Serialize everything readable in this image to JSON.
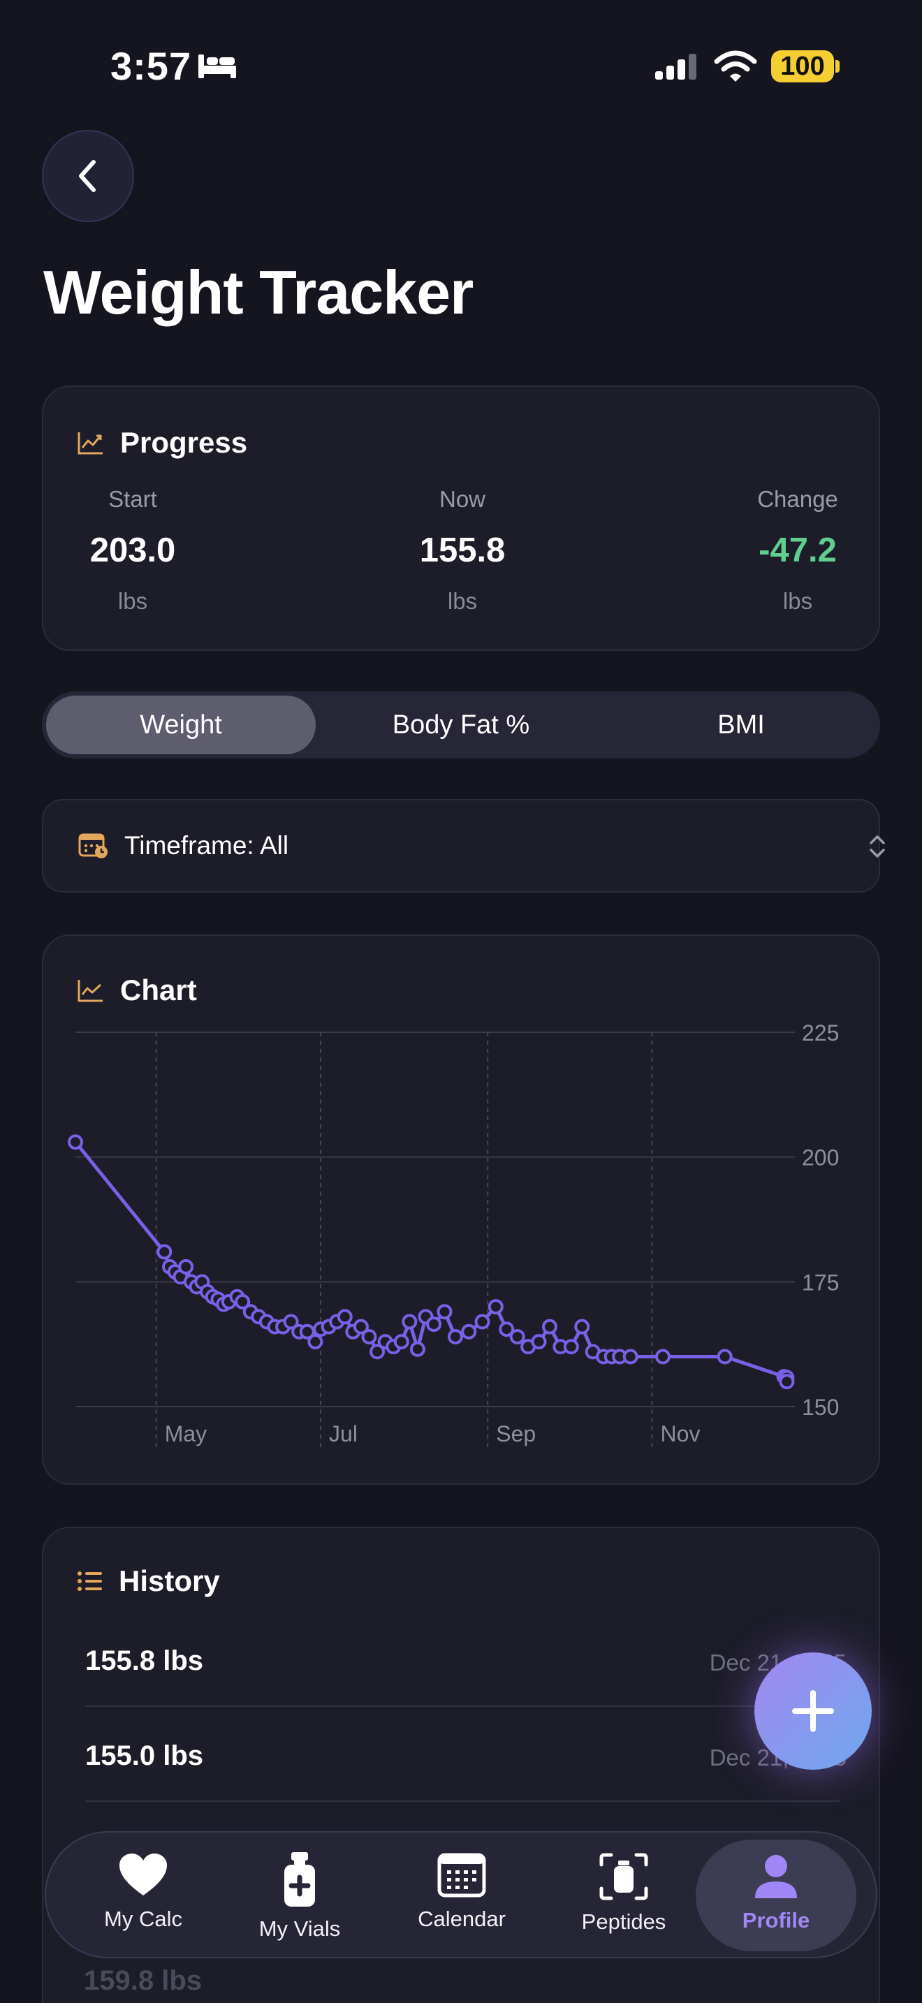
{
  "status_bar": {
    "time": "3:57",
    "battery": "100"
  },
  "header": {
    "title": "Weight Tracker"
  },
  "progress": {
    "title": "Progress",
    "start": {
      "label": "Start",
      "value": "203.0",
      "unit": "lbs"
    },
    "now": {
      "label": "Now",
      "value": "155.8",
      "unit": "lbs"
    },
    "change": {
      "label": "Change",
      "value": "-47.2",
      "unit": "lbs",
      "color": "#5fcf8f"
    }
  },
  "tabs": {
    "weight": "Weight",
    "body_fat": "Body Fat %",
    "bmi": "BMI",
    "active": "weight"
  },
  "timeframe": {
    "label": "Timeframe: All"
  },
  "chart": {
    "title": "Chart"
  },
  "chart_data": {
    "type": "line",
    "title": "",
    "xlabel": "",
    "ylabel": "",
    "x_axis": "date",
    "x_tick_labels": [
      "May",
      "Jul",
      "Sep",
      "Nov"
    ],
    "x_tick_dates": [
      "2025-05-01",
      "2025-07-01",
      "2025-09-01",
      "2025-11-01"
    ],
    "xlim": [
      "2025-04-01",
      "2025-12-24"
    ],
    "ylim": [
      150,
      225
    ],
    "y_ticks": [
      150,
      175,
      200,
      225
    ],
    "grid": true,
    "line_color": "#7a60e6",
    "series": [
      {
        "x": [
          "2025-04-01",
          "2025-05-04",
          "2025-05-06",
          "2025-05-08",
          "2025-05-10",
          "2025-05-12",
          "2025-05-14",
          "2025-05-16",
          "2025-05-18",
          "2025-05-20",
          "2025-05-22",
          "2025-05-24",
          "2025-05-26",
          "2025-05-28",
          "2025-05-31",
          "2025-06-02",
          "2025-06-05",
          "2025-06-08",
          "2025-06-11",
          "2025-06-14",
          "2025-06-17",
          "2025-06-20",
          "2025-06-23",
          "2025-06-26",
          "2025-06-29",
          "2025-07-01",
          "2025-07-04",
          "2025-07-07",
          "2025-07-10",
          "2025-07-13",
          "2025-07-16",
          "2025-07-19",
          "2025-07-22",
          "2025-07-25",
          "2025-07-28",
          "2025-07-31",
          "2025-08-03",
          "2025-08-06",
          "2025-08-09",
          "2025-08-12",
          "2025-08-16",
          "2025-08-20",
          "2025-08-25",
          "2025-08-30",
          "2025-09-04",
          "2025-09-08",
          "2025-09-12",
          "2025-09-16",
          "2025-09-20",
          "2025-09-24",
          "2025-09-28",
          "2025-10-02",
          "2025-10-06",
          "2025-10-10",
          "2025-10-14",
          "2025-10-17",
          "2025-10-20",
          "2025-10-24",
          "2025-11-05",
          "2025-11-28",
          "2025-12-20",
          "2025-12-21",
          "2025-12-21"
        ],
        "y": [
          203.0,
          181.0,
          178.0,
          177.0,
          176.0,
          178.0,
          175.0,
          174.0,
          175.0,
          173.0,
          172.0,
          171.5,
          170.5,
          171.0,
          172.0,
          171.0,
          169.0,
          168.0,
          167.0,
          166.0,
          166.0,
          167.0,
          165.0,
          165.0,
          163.0,
          165.5,
          166.0,
          167.0,
          168.0,
          165.0,
          166.0,
          164.0,
          161.0,
          163.0,
          162.0,
          163.0,
          167.0,
          161.5,
          168.0,
          166.5,
          169.0,
          164.0,
          165.0,
          167.0,
          170.0,
          165.5,
          164.0,
          162.0,
          163.0,
          166.0,
          162.0,
          162.0,
          166.0,
          161.0,
          160.0,
          160.0,
          160.0,
          160.0,
          160.0,
          160.0,
          156.0,
          155.8,
          155.0
        ]
      }
    ]
  },
  "history": {
    "title": "History",
    "rows": [
      {
        "weight": "155.8 lbs",
        "date": "Dec 21, 2025"
      },
      {
        "weight": "155.0 lbs",
        "date": "Dec 21, 2025"
      },
      {
        "weight": "159.8 lbs",
        "date": ""
      }
    ]
  },
  "tab_bar": {
    "items": [
      {
        "label": "My Calc",
        "icon": "heart-icon"
      },
      {
        "label": "My Vials",
        "icon": "vial-icon"
      },
      {
        "label": "Calendar",
        "icon": "calendar-icon"
      },
      {
        "label": "Peptides",
        "icon": "scan-vial-icon"
      },
      {
        "label": "Profile",
        "icon": "person-icon"
      }
    ],
    "active": "Profile",
    "active_color": "#a187f5"
  }
}
